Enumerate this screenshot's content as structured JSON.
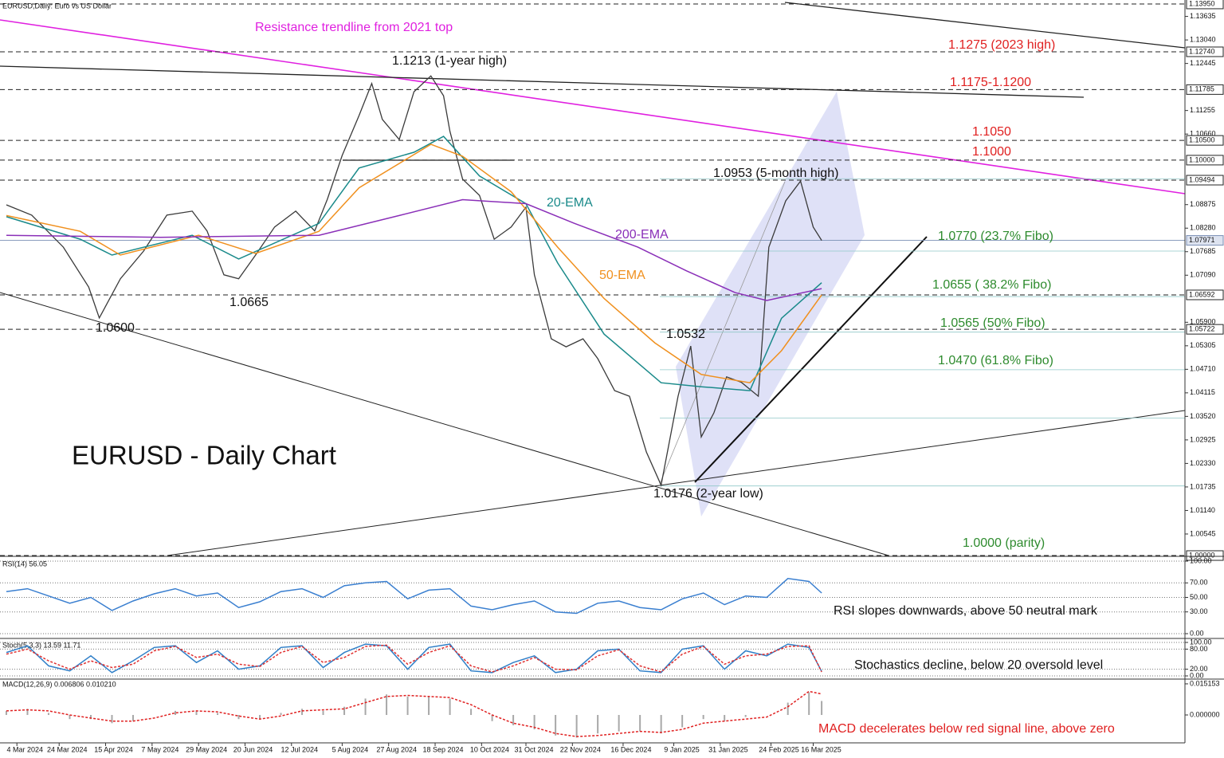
{
  "chart_data": [
    {
      "type": "line",
      "title": "EURUSD - Daily Chart",
      "subtitle": "EURUSD,Daily: Euro vs US Dollar",
      "xlim": [
        "2024-02-25",
        "2025-09-08"
      ],
      "xticks": [
        {
          "value": "2024-03-04",
          "label": "4 Mar 2024"
        },
        {
          "value": "2024-03-24",
          "label": "24 Mar 2024"
        },
        {
          "value": "2024-04-15",
          "label": "15 Apr 2024"
        },
        {
          "value": "2024-05-07",
          "label": "7 May 2024"
        },
        {
          "value": "2024-05-29",
          "label": "29 May 2024"
        },
        {
          "value": "2024-06-20",
          "label": "20 Jun 2024"
        },
        {
          "value": "2024-07-12",
          "label": "12 Jul 2024"
        },
        {
          "value": "2024-08-05",
          "label": "5 Aug 2024"
        },
        {
          "value": "2024-08-27",
          "label": "27 Aug 2024"
        },
        {
          "value": "2024-09-18",
          "label": "18 Sep 2024"
        },
        {
          "value": "2024-10-10",
          "label": "10 Oct 2024"
        },
        {
          "value": "2024-10-31",
          "label": "31 Oct 2024"
        },
        {
          "value": "2024-11-22",
          "label": "22 Nov 2024"
        },
        {
          "value": "2024-12-16",
          "label": "16 Dec 2024"
        },
        {
          "value": "2025-01-09",
          "label": "9 Jan 2025"
        },
        {
          "value": "2025-01-31",
          "label": "31 Jan 2025"
        },
        {
          "value": "2025-02-24",
          "label": "24 Feb 2025"
        },
        {
          "value": "2025-03-16",
          "label": "16 Mar 2025"
        }
      ],
      "ylim": [
        1.0,
        1.1405
      ],
      "yticks": [
        1.13635,
        {
          "value": 1.1304,
          "label": "1.13040"
        },
        1.12445,
        1.11255,
        {
          "value": 1.1066,
          "label": "1.10660"
        },
        1.08875,
        {
          "value": 1.0828,
          "label": "1.08280"
        },
        1.07685,
        {
          "value": 1.0709,
          "label": "1.07090"
        },
        {
          "value": 1.059,
          "label": "1.05900"
        },
        1.05305,
        {
          "value": 1.0471,
          "label": "1.04710"
        },
        1.04115,
        {
          "value": 1.0352,
          "label": "1.03520"
        },
        1.02925,
        {
          "value": 1.0233,
          "label": "1.02330"
        },
        1.01735,
        {
          "value": 1.0114,
          "label": "1.01140"
        },
        1.00545
      ],
      "level_ticks": [
        {
          "value": 1.1395,
          "label": "1.13950"
        },
        {
          "value": 1.1274,
          "label": "1.12740"
        },
        1.11785,
        {
          "value": 1.105,
          "label": "1.10500"
        },
        {
          "value": 1.1,
          "label": "1.10000"
        },
        1.09494,
        1.06592,
        1.05722,
        {
          "value": 1.0,
          "label": "1.00000"
        }
      ],
      "current_price": 1.07971,
      "fibo_levels": [
        1.0953,
        1.077,
        1.0655,
        1.0565,
        1.047,
        1.0348,
        1.0176
      ],
      "series": [
        {
          "color": "#3a3a3a",
          "x": [
            "2024-02-28",
            "2024-03-11",
            "2024-03-26",
            "2024-04-07",
            "2024-04-12",
            "2024-04-22",
            "2024-05-03",
            "2024-05-14",
            "2024-05-26",
            "2024-06-02",
            "2024-06-10",
            "2024-06-17",
            "2024-06-25",
            "2024-07-04",
            "2024-07-14",
            "2024-07-23",
            "2024-07-29",
            "2024-08-05",
            "2024-08-13",
            "2024-08-19",
            "2024-08-24",
            "2024-09-01",
            "2024-09-08",
            "2024-09-16",
            "2024-09-22",
            "2024-09-25",
            "2024-10-01",
            "2024-10-09",
            "2024-10-16",
            "2024-10-24",
            "2024-10-31",
            "2024-11-04",
            "2024-11-12",
            "2024-11-19",
            "2024-11-27",
            "2024-12-04",
            "2024-12-12",
            "2024-12-19",
            "2024-12-27",
            "2025-01-03",
            "2025-01-11",
            "2025-01-17",
            "2025-01-22",
            "2025-01-28",
            "2025-02-03",
            "2025-02-10",
            "2025-02-18",
            "2025-02-23",
            "2025-03-03",
            "2025-03-10",
            "2025-03-16",
            "2025-03-20"
          ],
          "values": [
            1.0887,
            1.0861,
            1.078,
            1.0679,
            1.0601,
            1.07,
            1.077,
            1.0861,
            1.0871,
            1.0821,
            1.071,
            1.07,
            1.076,
            1.0831,
            1.0871,
            1.0821,
            1.0901,
            1.1012,
            1.1113,
            1.1194,
            1.1103,
            1.1052,
            1.1173,
            1.1213,
            1.1163,
            1.1073,
            1.0952,
            1.0911,
            1.08,
            1.0831,
            1.0881,
            1.071,
            1.0548,
            1.0528,
            1.0548,
            1.0498,
            1.0417,
            1.0403,
            1.0262,
            1.0178,
            1.0403,
            1.053,
            1.03,
            1.0361,
            1.0452,
            1.0438,
            1.0403,
            1.078,
            1.0897,
            1.0947,
            1.0831,
            1.0797
          ]
        },
        {
          "name": "20-EMA",
          "color": "#1a8a8a",
          "x": [
            "2024-02-28",
            "2024-04-03",
            "2024-04-18",
            "2024-05-26",
            "2024-06-17",
            "2024-07-25",
            "2024-08-13",
            "2024-09-08",
            "2024-09-22",
            "2024-10-09",
            "2024-10-31",
            "2024-11-15",
            "2024-12-07",
            "2025-01-03",
            "2025-01-22",
            "2025-02-14",
            "2025-03-01",
            "2025-03-20"
          ],
          "values": [
            1.0857,
            1.08,
            1.076,
            1.081,
            1.075,
            1.084,
            1.098,
            1.102,
            1.106,
            1.096,
            1.089,
            1.074,
            1.056,
            1.0437,
            1.0427,
            1.0417,
            1.06,
            1.069
          ]
        },
        {
          "name": "50-EMA",
          "color": "#f0901e",
          "x": [
            "2024-02-28",
            "2024-04-03",
            "2024-04-22",
            "2024-05-29",
            "2024-06-25",
            "2024-07-25",
            "2024-08-13",
            "2024-09-16",
            "2024-10-01",
            "2024-10-24",
            "2024-11-15",
            "2024-12-07",
            "2024-12-31",
            "2025-01-22",
            "2025-02-14",
            "2025-03-01",
            "2025-03-20"
          ],
          "values": [
            1.086,
            1.082,
            1.076,
            1.081,
            1.0764,
            1.082,
            1.093,
            1.104,
            1.101,
            1.092,
            1.078,
            1.065,
            1.0538,
            1.0458,
            1.0437,
            1.0518,
            1.0659
          ]
        },
        {
          "name": "200-EMA",
          "color": "#8a2fb8",
          "x": [
            "2024-02-28",
            "2024-05-11",
            "2024-07-25",
            "2024-09-01",
            "2024-10-01",
            "2024-10-31",
            "2024-11-23",
            "2024-12-23",
            "2025-01-15",
            "2025-02-07",
            "2025-02-22",
            "2025-03-20"
          ],
          "values": [
            1.081,
            1.0805,
            1.081,
            1.086,
            1.09,
            1.089,
            1.084,
            1.078,
            1.072,
            1.0665,
            1.0645,
            1.0675
          ]
        }
      ],
      "annotations": [
        {
          "text": "Resistance trendline from 2021 top",
          "color": "#e020e0"
        },
        {
          "text": "1.1213 (1-year high)",
          "color": "#111111"
        },
        {
          "text": "1.1275 (2023 high)",
          "color": "#e02020"
        },
        {
          "text": "1.1175-1.1200",
          "color": "#e02020"
        },
        {
          "text": "1.1050",
          "color": "#e02020"
        },
        {
          "text": "1.1000",
          "color": "#e02020"
        },
        {
          "text": "1.0953 (5-month high)",
          "color": "#111111"
        },
        {
          "text": "20-EMA",
          "color": "#1a8a8a"
        },
        {
          "text": "200-EMA",
          "color": "#8a2fb8"
        },
        {
          "text": "50-EMA",
          "color": "#f0901e"
        },
        {
          "text": "1.0770 (23.7% Fibo)",
          "color": "#2e8b2e"
        },
        {
          "text": "1.0655 ( 38.2% Fibo)",
          "color": "#2e8b2e"
        },
        {
          "text": "1.0565 (50% Fibo)",
          "color": "#2e8b2e"
        },
        {
          "text": "1.0470 (61.8% Fibo)",
          "color": "#2e8b2e"
        },
        {
          "text": "1.0665",
          "color": "#111111"
        },
        {
          "text": "1.0600",
          "color": "#111111"
        },
        {
          "text": "1.0532",
          "color": "#111111"
        },
        {
          "text": "1.0176 (2-year low)",
          "color": "#111111"
        },
        {
          "text": "1.0000 (parity)",
          "color": "#2e8b2e"
        }
      ]
    },
    {
      "type": "line",
      "subtitle": "RSI(14) 56.05",
      "annotation": "RSI slopes downwards, above 50 neutral mark",
      "annotation_color": "#111111",
      "ylim": [
        0,
        100
      ],
      "grid": true,
      "yticks": [
        {
          "value": 100,
          "label": "100.00"
        },
        {
          "value": 70,
          "label": "70.00"
        },
        {
          "value": 50,
          "label": "50.00"
        },
        {
          "value": 30,
          "label": "30.00"
        },
        {
          "value": 0,
          "label": "0.00"
        }
      ],
      "x": [
        "2024-02-28",
        "2024-03-09",
        "2024-03-19",
        "2024-03-29",
        "2024-04-08",
        "2024-04-18",
        "2024-04-28",
        "2024-05-08",
        "2024-05-18",
        "2024-05-28",
        "2024-06-07",
        "2024-06-17",
        "2024-06-27",
        "2024-07-07",
        "2024-07-17",
        "2024-07-27",
        "2024-08-06",
        "2024-08-16",
        "2024-08-26",
        "2024-09-05",
        "2024-09-15",
        "2024-09-25",
        "2024-10-05",
        "2024-10-15",
        "2024-10-25",
        "2024-11-04",
        "2024-11-14",
        "2024-11-24",
        "2024-12-04",
        "2024-12-14",
        "2024-12-24",
        "2025-01-03",
        "2025-01-13",
        "2025-01-23",
        "2025-02-02",
        "2025-02-12",
        "2025-02-22",
        "2025-03-04",
        "2025-03-14",
        "2025-03-20"
      ],
      "series": [
        {
          "color": "#3a7fd0",
          "values": [
            58,
            62,
            52,
            42,
            50,
            32,
            45,
            55,
            62,
            52,
            56,
            36,
            44,
            58,
            62,
            50,
            66,
            70,
            72,
            48,
            60,
            62,
            38,
            33,
            40,
            45,
            30,
            28,
            42,
            45,
            36,
            33,
            48,
            56,
            40,
            52,
            50,
            76,
            72,
            56.05
          ]
        }
      ]
    },
    {
      "type": "line",
      "subtitle": "Stoch(5,3,3) 13.59 11.71",
      "annotation": "Stochastics decline, below 20 oversold level",
      "annotation_color": "#111111",
      "ylim": [
        0,
        100
      ],
      "grid": true,
      "yticks": [
        {
          "value": 100,
          "label": "100.00"
        },
        {
          "value": 80,
          "label": "80.00"
        },
        {
          "value": 20,
          "label": "20.00"
        },
        {
          "value": 0,
          "label": "0.00"
        }
      ],
      "x": [
        "2024-02-28",
        "2024-03-09",
        "2024-03-19",
        "2024-03-29",
        "2024-04-08",
        "2024-04-18",
        "2024-04-28",
        "2024-05-08",
        "2024-05-18",
        "2024-05-28",
        "2024-06-07",
        "2024-06-17",
        "2024-06-27",
        "2024-07-07",
        "2024-07-17",
        "2024-07-27",
        "2024-08-06",
        "2024-08-16",
        "2024-08-26",
        "2024-09-05",
        "2024-09-15",
        "2024-09-25",
        "2024-10-05",
        "2024-10-15",
        "2024-10-25",
        "2024-11-04",
        "2024-11-14",
        "2024-11-24",
        "2024-12-04",
        "2024-12-14",
        "2024-12-24",
        "2025-01-03",
        "2025-01-13",
        "2025-01-23",
        "2025-02-02",
        "2025-02-12",
        "2025-02-22",
        "2025-03-04",
        "2025-03-14",
        "2025-03-20"
      ],
      "series": [
        {
          "color": "#2f7fc8",
          "values": [
            70,
            90,
            30,
            15,
            60,
            10,
            45,
            85,
            90,
            40,
            75,
            20,
            30,
            85,
            90,
            25,
            70,
            95,
            90,
            20,
            85,
            95,
            15,
            10,
            40,
            60,
            10,
            20,
            75,
            80,
            15,
            10,
            80,
            90,
            20,
            75,
            60,
            95,
            85,
            13.59
          ]
        },
        {
          "color": "#e03030",
          "dashed": true,
          "values": [
            65,
            80,
            45,
            20,
            45,
            25,
            35,
            75,
            88,
            55,
            65,
            35,
            28,
            70,
            88,
            40,
            55,
            88,
            92,
            35,
            70,
            90,
            30,
            12,
            30,
            55,
            20,
            18,
            60,
            78,
            30,
            12,
            65,
            88,
            35,
            60,
            65,
            88,
            90,
            11.71
          ]
        }
      ]
    },
    {
      "type": "bar",
      "subtitle": "MACD(12,26,9) 0.006806 0.010210",
      "annotation": "MACD decelerates below red signal line, above zero",
      "annotation_color": "#e02020",
      "ylim": [
        -0.0128,
        0.0163
      ],
      "grid": false,
      "yticks": [
        0.015153,
        {
          "value": 0,
          "label": "0.000000"
        }
      ],
      "x": [
        "2024-02-28",
        "2024-03-09",
        "2024-03-19",
        "2024-03-29",
        "2024-04-08",
        "2024-04-18",
        "2024-04-28",
        "2024-05-08",
        "2024-05-18",
        "2024-05-28",
        "2024-06-07",
        "2024-06-17",
        "2024-06-27",
        "2024-07-07",
        "2024-07-17",
        "2024-07-27",
        "2024-08-06",
        "2024-08-16",
        "2024-08-26",
        "2024-09-05",
        "2024-09-15",
        "2024-09-25",
        "2024-10-05",
        "2024-10-15",
        "2024-10-25",
        "2024-11-04",
        "2024-11-14",
        "2024-11-24",
        "2024-12-04",
        "2024-12-14",
        "2024-12-24",
        "2025-01-03",
        "2025-01-13",
        "2025-01-23",
        "2025-02-02",
        "2025-02-12",
        "2025-02-22",
        "2025-03-04",
        "2025-03-14",
        "2025-03-20"
      ],
      "series": [
        {
          "type": "bar",
          "color": "#a8a8a8",
          "values": [
            0.002,
            0.003,
            0.001,
            -0.002,
            -0.002,
            -0.004,
            -0.003,
            0,
            0.002,
            0.002,
            0.001,
            -0.002,
            -0.002,
            0.001,
            0.003,
            0.002,
            0.004,
            0.008,
            0.01,
            0.009,
            0.009,
            0.008,
            0.003,
            -0.003,
            -0.005,
            -0.007,
            -0.01,
            -0.011,
            -0.009,
            -0.008,
            -0.008,
            -0.009,
            -0.006,
            -0.002,
            -0.003,
            -0.001,
            0,
            0.006,
            0.011,
            0.006806
          ]
        },
        {
          "type": "line",
          "color": "#e02020",
          "dashed": true,
          "values": [
            0.002,
            0.0025,
            0.002,
            0,
            -0.0015,
            -0.003,
            -0.003,
            -0.0015,
            0.001,
            0.002,
            0.0015,
            -0.0005,
            -0.002,
            -0.0005,
            0.002,
            0.0025,
            0.003,
            0.006,
            0.009,
            0.0095,
            0.009,
            0.0085,
            0.005,
            0,
            -0.004,
            -0.006,
            -0.009,
            -0.0105,
            -0.01,
            -0.009,
            -0.008,
            -0.0085,
            -0.007,
            -0.004,
            -0.003,
            -0.002,
            -0.001,
            0.004,
            0.0115,
            0.01021
          ]
        }
      ]
    }
  ]
}
